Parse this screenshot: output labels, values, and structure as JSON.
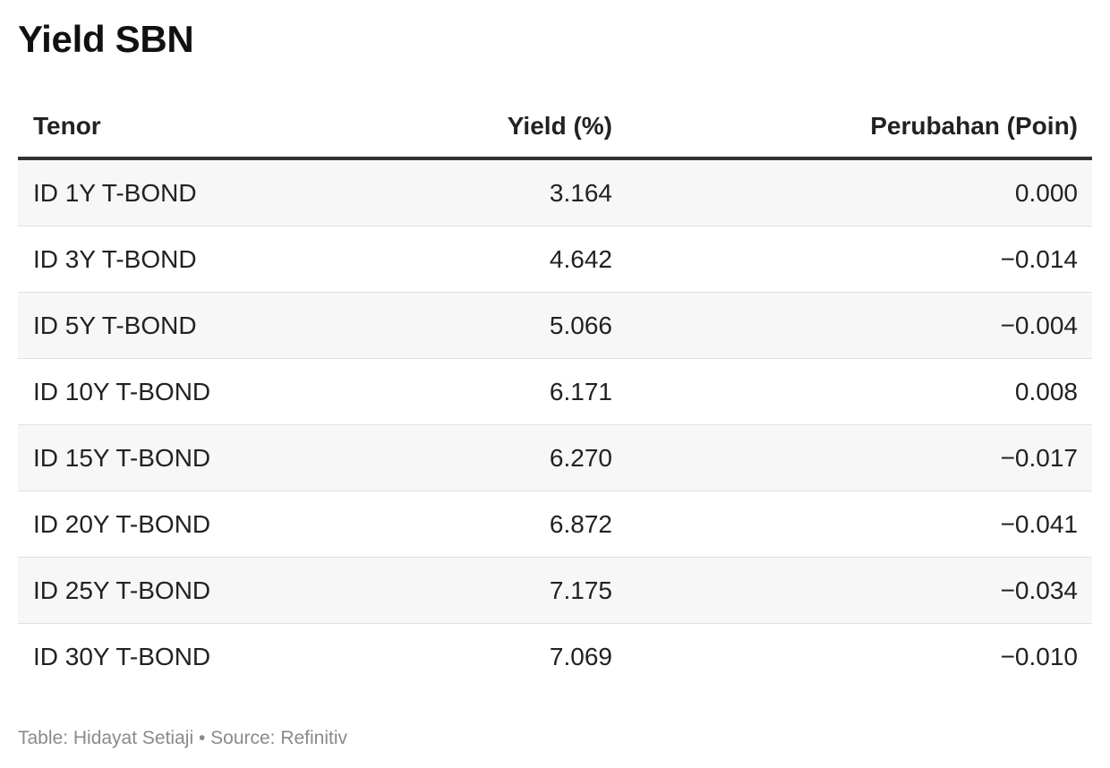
{
  "title": "Yield SBN",
  "chart_data": {
    "type": "table",
    "title": "Yield SBN",
    "columns": [
      "Tenor",
      "Yield (%)",
      "Perubahan (Poin)"
    ],
    "rows": [
      [
        "ID 1Y T-BOND",
        "3.164",
        "0.000"
      ],
      [
        "ID 3Y T-BOND",
        "4.642",
        "−0.014"
      ],
      [
        "ID 5Y T-BOND",
        "5.066",
        "−0.004"
      ],
      [
        "ID 10Y T-BOND",
        "6.171",
        "0.008"
      ],
      [
        "ID 15Y T-BOND",
        "6.270",
        "−0.017"
      ],
      [
        "ID 20Y T-BOND",
        "6.872",
        "−0.041"
      ],
      [
        "ID 25Y T-BOND",
        "7.175",
        "−0.034"
      ],
      [
        "ID 30Y T-BOND",
        "7.069",
        "−0.010"
      ]
    ]
  },
  "footer": "Table: Hidayat Setiaji • Source: Refinitiv"
}
